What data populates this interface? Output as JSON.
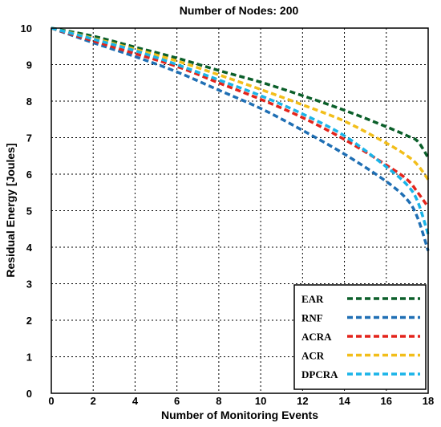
{
  "chart_data": {
    "type": "line",
    "title": "Number of Nodes: 200",
    "xlabel": "Number of Monitoring Events",
    "ylabel": "Residual Energy [Joules]",
    "xlim": [
      0,
      18
    ],
    "ylim": [
      0,
      10
    ],
    "xticks": [
      0,
      2,
      4,
      6,
      8,
      10,
      12,
      14,
      16,
      18
    ],
    "yticks": [
      0,
      1,
      2,
      3,
      4,
      5,
      6,
      7,
      8,
      9,
      10
    ],
    "grid": true,
    "legend_position": "bottom-right",
    "x": [
      0,
      2,
      4,
      6,
      8,
      10,
      12,
      14,
      16,
      17,
      17.5,
      18
    ],
    "series": [
      {
        "name": "EAR",
        "color": "#0b5f2a",
        "values": [
          10,
          9.78,
          9.48,
          9.18,
          8.84,
          8.52,
          8.15,
          7.75,
          7.3,
          7.05,
          6.9,
          6.45
        ]
      },
      {
        "name": "RNF",
        "color": "#1f6fb4",
        "values": [
          10,
          9.6,
          9.22,
          8.8,
          8.3,
          7.8,
          7.2,
          6.55,
          5.8,
          5.3,
          4.8,
          3.9
        ]
      },
      {
        "name": "ACRA",
        "color": "#e3241b",
        "values": [
          10,
          9.65,
          9.3,
          8.95,
          8.5,
          8.05,
          7.55,
          6.95,
          6.25,
          5.85,
          5.5,
          5.1
        ]
      },
      {
        "name": "ACR",
        "color": "#f2be1a",
        "values": [
          10,
          9.72,
          9.42,
          9.1,
          8.72,
          8.32,
          7.9,
          7.45,
          6.85,
          6.5,
          6.25,
          5.85
        ]
      },
      {
        "name": "DPCRA",
        "color": "#1ab4e8",
        "values": [
          10,
          9.7,
          9.38,
          9.0,
          8.58,
          8.15,
          7.65,
          7.05,
          6.2,
          5.7,
          5.25,
          4.35
        ]
      }
    ]
  }
}
